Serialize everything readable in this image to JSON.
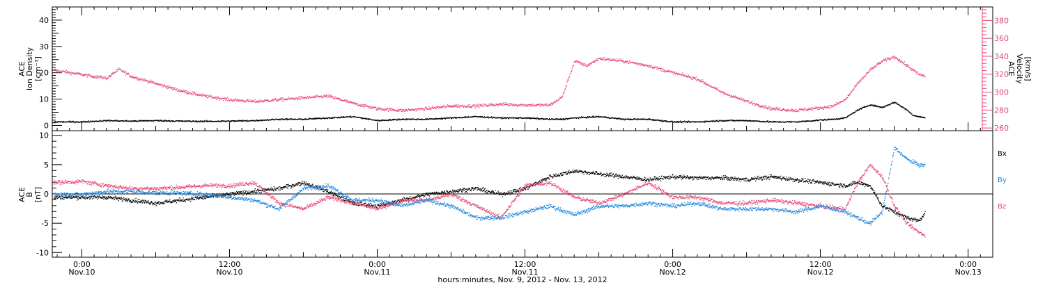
{
  "footer": {
    "xlabel": "hours:minutes, Nov. 9, 2012 - Nov. 13, 2012"
  },
  "x_axis": {
    "ticks": [
      {
        "hour": 0,
        "time": "0:00",
        "date": "Nov.10"
      },
      {
        "hour": 12,
        "time": "12:00",
        "date": "Nov.10"
      },
      {
        "hour": 24,
        "time": "0:00",
        "date": "Nov.11"
      },
      {
        "hour": 36,
        "time": "12:00",
        "date": "Nov.11"
      },
      {
        "hour": 48,
        "time": "0:00",
        "date": "Nov.12"
      },
      {
        "hour": 60,
        "time": "12:00",
        "date": "Nov.12"
      },
      {
        "hour": 72,
        "time": "0:00",
        "date": "Nov.13"
      }
    ]
  },
  "chart_data": [
    {
      "type": "scatter",
      "panel": "top",
      "ylabel_lines": [
        "ACE",
        "Ion Density",
        "[cm⁻³]"
      ],
      "ylabel2_lines": [
        "ACE",
        "Velocity",
        "[km/s]"
      ],
      "ylim": [
        -2,
        45
      ],
      "y2lim": [
        257,
        395
      ],
      "yticks": [
        0,
        10,
        20,
        30,
        40
      ],
      "y2ticks": [
        260,
        280,
        300,
        320,
        340,
        360,
        380
      ],
      "x_units": "hours from 0:00 Nov. 10, 2012",
      "xlim": [
        -2.4,
        74
      ],
      "series": [
        {
          "color": "#000000",
          "axis": "left",
          "x": [
            -2.3,
            0,
            2,
            4,
            6,
            8,
            10,
            12,
            14,
            16,
            17,
            18,
            20,
            22,
            24,
            26,
            28,
            30,
            32,
            34,
            36,
            38,
            39,
            40,
            42,
            44,
            46,
            48,
            50,
            52,
            54,
            56,
            58,
            60,
            61,
            62,
            63,
            64,
            65,
            66,
            67,
            67.5,
            68,
            68.5
          ],
          "y": [
            1.5,
            1.5,
            2,
            1.8,
            2,
            1.8,
            1.7,
            1.8,
            2,
            2.5,
            2.5,
            2.5,
            3,
            3.5,
            2,
            2.5,
            2.5,
            3,
            3.5,
            3,
            3,
            2.5,
            2.5,
            3,
            3.5,
            2.5,
            2.5,
            1.5,
            1.5,
            2,
            2,
            1.5,
            1.5,
            2.2,
            2.5,
            3,
            6,
            8,
            7,
            9,
            6,
            4,
            3.5,
            3
          ]
        },
        {
          "color": "#e8436e",
          "axis": "right",
          "x": [
            -2.3,
            0,
            1,
            2,
            3,
            4,
            6,
            8,
            10,
            12,
            14,
            16,
            18,
            20,
            22,
            24,
            26,
            28,
            30,
            32,
            34,
            36,
            38,
            39,
            40,
            41,
            42,
            44,
            46,
            48,
            50,
            52,
            54,
            56,
            58,
            60,
            61,
            62,
            63,
            64,
            65,
            66,
            67,
            68,
            68.5
          ],
          "y": [
            325,
            320,
            318,
            316,
            326,
            318,
            310,
            302,
            296,
            292,
            290,
            292,
            294,
            296,
            288,
            282,
            280,
            282,
            285,
            285,
            287,
            286,
            286,
            295,
            335,
            330,
            338,
            335,
            330,
            322,
            315,
            300,
            290,
            282,
            280,
            283,
            285,
            292,
            310,
            325,
            335,
            340,
            330,
            320,
            318
          ]
        }
      ]
    },
    {
      "type": "scatter",
      "panel": "bottom",
      "ylabel_lines": [
        "ACE",
        "B",
        "[nT]"
      ],
      "ylim": [
        -10.8,
        10.8
      ],
      "yticks": [
        -10,
        -5,
        0,
        5,
        10
      ],
      "xlim": [
        -2.4,
        74
      ],
      "legend": [
        "Bx",
        "By",
        "Bz"
      ],
      "series": [
        {
          "name": "Bx",
          "color": "#000000",
          "x": [
            -2.3,
            0,
            2,
            4,
            6,
            8,
            10,
            12,
            14,
            16,
            18,
            20,
            22,
            24,
            26,
            28,
            30,
            32,
            34,
            36,
            38,
            40,
            42,
            44,
            46,
            48,
            50,
            52,
            54,
            56,
            58,
            60,
            62,
            63,
            64,
            65,
            66,
            67,
            68,
            68.5
          ],
          "y": [
            -0.5,
            -0.5,
            -0.5,
            -1,
            -1.5,
            -1,
            -0.5,
            0,
            0.5,
            1,
            2,
            0.5,
            -1.5,
            -2,
            -1,
            0,
            0.5,
            1,
            0,
            1,
            3,
            4,
            3.5,
            3,
            2.5,
            3,
            2.8,
            2.8,
            2.5,
            3,
            2.5,
            2,
            1.5,
            2,
            1.5,
            -2,
            -3,
            -4,
            -4.5,
            -3
          ]
        },
        {
          "name": "By",
          "color": "#1f86e0",
          "x": [
            -2.3,
            0,
            2,
            4,
            6,
            8,
            10,
            12,
            14,
            16,
            18,
            20,
            22,
            24,
            26,
            28,
            30,
            32,
            34,
            36,
            38,
            40,
            42,
            44,
            46,
            48,
            50,
            52,
            54,
            56,
            58,
            60,
            62,
            63,
            64,
            65,
            66,
            67,
            68,
            68.5
          ],
          "y": [
            0,
            0,
            0.5,
            0.5,
            0.3,
            0.2,
            0,
            -0.5,
            -1,
            -2.5,
            1,
            1.5,
            -1,
            -1,
            -2,
            -1,
            -2,
            -4,
            -4,
            -3,
            -2,
            -3.5,
            -2,
            -2,
            -1.5,
            -2,
            -1.5,
            -2.5,
            -2.5,
            -2.5,
            -3,
            -2,
            -3,
            -4,
            -5,
            -3,
            8,
            6,
            5,
            5
          ]
        },
        {
          "name": "Bz",
          "color": "#e8436e",
          "x": [
            -2.3,
            0,
            2,
            4,
            6,
            8,
            10,
            12,
            14,
            16,
            18,
            20,
            22,
            24,
            26,
            28,
            30,
            32,
            34,
            36,
            38,
            40,
            42,
            44,
            46,
            48,
            50,
            52,
            54,
            56,
            58,
            60,
            62,
            63,
            64,
            65,
            66,
            67,
            68,
            68.5
          ],
          "y": [
            2,
            2.2,
            1.5,
            1,
            1,
            1.2,
            1.5,
            1.5,
            2,
            -1.5,
            -2.5,
            -0.5,
            -1.5,
            -2.5,
            -1,
            -1,
            0,
            -2,
            -4,
            1.5,
            2,
            -0.5,
            -1.5,
            0,
            2,
            -0.5,
            -0.5,
            -1.5,
            -1.5,
            -1,
            -1.5,
            -2,
            -2.5,
            2,
            5,
            3,
            -2,
            -5,
            -6.5,
            -7
          ]
        }
      ]
    }
  ]
}
